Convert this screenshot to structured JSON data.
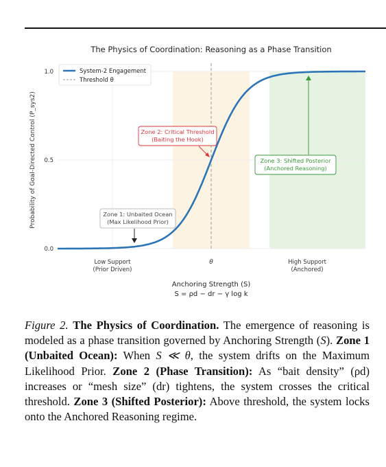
{
  "figure": {
    "title": "The Physics of Coordination: Reasoning as a Phase Transition",
    "legend": {
      "series_label": "System-2 Engagement",
      "threshold_label": "Threshold θ"
    },
    "ylabel": "Probability of Goal-Directed Control (P_sys2)",
    "y_ticks": [
      "0.0",
      "0.5",
      "1.0"
    ],
    "x_ticks": [
      {
        "line1": "Low Support",
        "line2": "(Prior Driven)"
      },
      {
        "line1": "θ",
        "line2": ""
      },
      {
        "line1": "High Support",
        "line2": "(Anchored)"
      }
    ],
    "xlabel_line1": "Anchoring Strength (S)",
    "xlabel_line2": "S = ρd − dr − γ log k",
    "annotations": {
      "zone1_line1": "Zone 1: Unbaited Ocean",
      "zone1_line2": "(Max Likelihood Prior)",
      "zone2_line1": "Zone 2: Critical Threshold",
      "zone2_line2": "(Baiting the Hook)",
      "zone3_line1": "Zone 3: Shifted Posterior",
      "zone3_line2": "(Anchored Reasoning)"
    },
    "colors": {
      "curve": "#2b74b8",
      "zone2_fill": "#fdf3e2",
      "zone3_fill": "#e6f2e2",
      "zone2_text": "#d9363e",
      "zone3_text": "#3a9a3a",
      "threshold_line": "#999999"
    }
  },
  "chart_data": {
    "type": "line",
    "title": "The Physics of Coordination: Reasoning as a Phase Transition",
    "xlabel": "Anchoring Strength (S)",
    "ylabel": "Probability of Goal-Directed Control (P_sys2)",
    "ylim": [
      0,
      1.0
    ],
    "series": [
      {
        "name": "System-2 Engagement",
        "x": [
          -1.0,
          -0.8,
          -0.6,
          -0.4,
          -0.3,
          -0.2,
          -0.1,
          0.0,
          0.1,
          0.2,
          0.3,
          0.4,
          0.6,
          0.8,
          1.0
        ],
        "y": [
          0.0,
          0.0,
          0.02,
          0.06,
          0.12,
          0.22,
          0.36,
          0.5,
          0.64,
          0.78,
          0.88,
          0.94,
          0.98,
          1.0,
          1.0
        ]
      }
    ],
    "threshold_x": 0.0,
    "zones": [
      "Zone 1: Unbaited Ocean",
      "Zone 2: Critical Threshold",
      "Zone 3: Shifted Posterior"
    ],
    "grid": true,
    "legend_position": "top-left"
  },
  "caption": {
    "label": "Figure 2.",
    "title": "The Physics of Coordination.",
    "text1": " The emergence of reasoning is modeled as a phase transition governed by Anchoring Strength (",
    "var_s": "S",
    "text2": "). ",
    "zone1_title": "Zone 1 (Unbaited Ocean):",
    "text3": " When ",
    "cond": "S ≪ θ",
    "text4": ", the system drifts on the Maximum Likelihood Prior. ",
    "zone2_title": "Zone 2 (Phase Transition):",
    "text5": " As “bait density” (ρd) increases or “mesh size” (dr) tightens, the system crosses the critical threshold. ",
    "zone3_title": "Zone 3 (Shifted Posterior):",
    "text6": " Above threshold, the system locks onto the Anchored Reasoning regime."
  }
}
